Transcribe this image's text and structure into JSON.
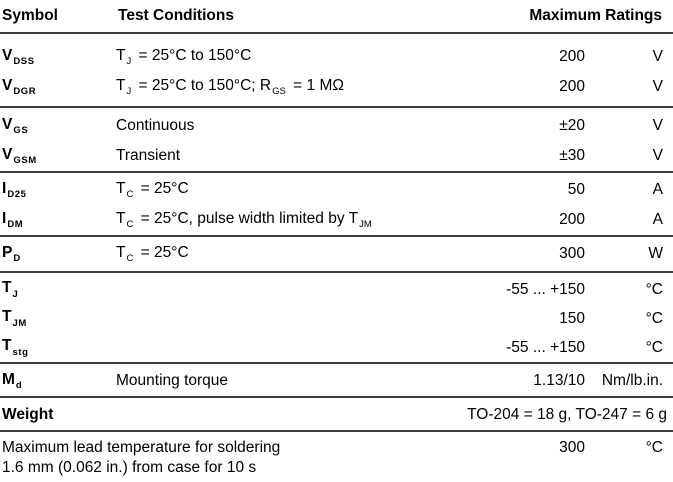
{
  "colors": {
    "text": "#000000",
    "rule": "#3d3d3d",
    "background": "#ffffff"
  },
  "table": {
    "header": {
      "symbol": "Symbol",
      "conditions": "Test Conditions",
      "ratings": "Maximum Ratings"
    },
    "groups": [
      {
        "rows": [
          {
            "type": "standard",
            "symbol": {
              "base": "V",
              "sub": "DSS"
            },
            "conditions": [
              {
                "t": "T"
              },
              {
                "s": "J"
              },
              {
                "t": " = 25°C to 150°C"
              }
            ],
            "value": "200",
            "unit": "V"
          },
          {
            "type": "standard",
            "symbol": {
              "base": "V",
              "sub": "DGR"
            },
            "conditions": [
              {
                "t": "T"
              },
              {
                "s": "J"
              },
              {
                "t": " = 25°C to 150°C; R"
              },
              {
                "s": "GS"
              },
              {
                "t": " = 1 MΩ"
              }
            ],
            "value": "200",
            "unit": "V"
          }
        ]
      },
      {
        "rows": [
          {
            "type": "standard",
            "symbol": {
              "base": "V",
              "sub": "GS"
            },
            "conditions": [
              {
                "t": "Continuous"
              }
            ],
            "value": "±20",
            "unit": "V"
          },
          {
            "type": "standard",
            "symbol": {
              "base": "V",
              "sub": "GSM"
            },
            "conditions": [
              {
                "t": "Transient"
              }
            ],
            "value": "±30",
            "unit": "V"
          }
        ]
      },
      {
        "rows": [
          {
            "type": "standard",
            "symbol": {
              "base": "I",
              "sub": "D25"
            },
            "conditions": [
              {
                "t": "T"
              },
              {
                "s": "C"
              },
              {
                "t": " = 25°C"
              }
            ],
            "value": "50",
            "unit": "A"
          },
          {
            "type": "standard",
            "symbol": {
              "base": "I",
              "sub": "DM"
            },
            "conditions": [
              {
                "t": "T"
              },
              {
                "s": "C"
              },
              {
                "t": " = 25°C, pulse width limited by T"
              },
              {
                "s": "JM"
              }
            ],
            "value": "200",
            "unit": "A"
          }
        ]
      },
      {
        "rows": [
          {
            "type": "standard",
            "symbol": {
              "base": "P",
              "sub": "D"
            },
            "conditions": [
              {
                "t": "T"
              },
              {
                "s": "C"
              },
              {
                "t": " = 25°C"
              }
            ],
            "value": "300",
            "unit": "W"
          }
        ]
      },
      {
        "rows": [
          {
            "type": "standard",
            "symbol": {
              "base": "T",
              "sub": "J"
            },
            "conditions": [],
            "value": "-55 ... +150",
            "unit": "°C"
          },
          {
            "type": "standard",
            "symbol": {
              "base": "T",
              "sub": "JM"
            },
            "conditions": [],
            "value": "150",
            "unit": "°C"
          },
          {
            "type": "standard",
            "symbol": {
              "base": "T",
              "sub": "stg"
            },
            "conditions": [],
            "value": "-55 ... +150",
            "unit": "°C"
          }
        ]
      },
      {
        "rows": [
          {
            "type": "standard",
            "symbol": {
              "base": "M",
              "sub": "d"
            },
            "conditions": [
              {
                "t": "Mounting torque"
              }
            ],
            "value": "1.13/10",
            "unit": "Nm/lb.in."
          }
        ]
      },
      {
        "rows": [
          {
            "type": "weight",
            "label": "Weight",
            "value": "TO-204 = 18 g, TO-247 = 6 g"
          }
        ]
      },
      {
        "rows": [
          {
            "type": "note",
            "lines": [
              "Maximum lead temperature for soldering",
              "1.6 mm (0.062 in.) from case for 10 s"
            ],
            "value": "300",
            "unit": "°C"
          }
        ]
      }
    ]
  }
}
